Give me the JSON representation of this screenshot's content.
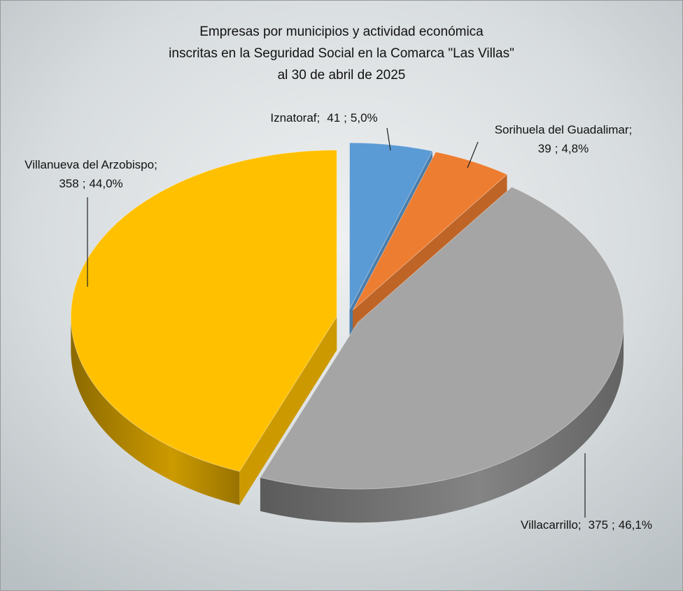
{
  "chart_data": {
    "type": "pie3d",
    "title": [
      "Empresas por municipios y actividad económica",
      "inscritas en la Seguridad Social en la Comarca \"Las Villas\"",
      "al 30 de abril de 2025"
    ],
    "categories": [
      "Iznatoraf",
      "Sorihuela del Guadalimar",
      "Villacarrillo",
      "Villanueva del Arzobispo"
    ],
    "values": [
      41,
      39,
      375,
      358
    ],
    "percentage_labels": [
      "5,0%",
      "4,8%",
      "46,1%",
      "44,0%"
    ],
    "label_separator": ";",
    "colors": [
      "#5b9bd5",
      "#ed7d31",
      "#a5a5a5",
      "#ffc000"
    ]
  }
}
